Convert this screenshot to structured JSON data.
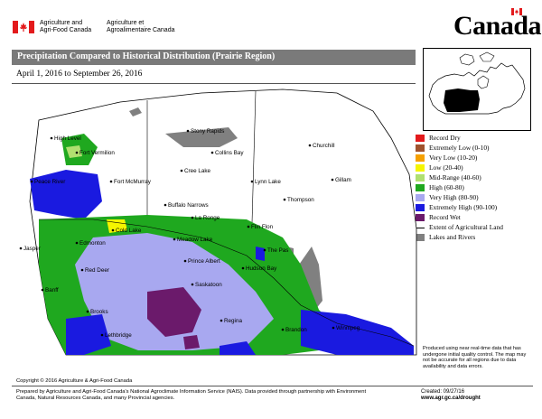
{
  "header": {
    "agency_en_line1": "Agriculture and",
    "agency_en_line2": "Agri-Food Canada",
    "agency_fr_line1": "Agriculture et",
    "agency_fr_line2": "Agroalimentaire Canada",
    "wordmark": "Canada"
  },
  "title": "Precipitation Compared to Historical Distribution (Prairie Region)",
  "date_range": "April 1, 2016 to September 26, 2016",
  "legend": [
    {
      "label": "Record Dry",
      "color": "#e31a1c",
      "kind": "box"
    },
    {
      "label": "Extremely Low (0-10)",
      "color": "#a0522d",
      "kind": "box"
    },
    {
      "label": "Very Low (10-20)",
      "color": "#f5a000",
      "kind": "box"
    },
    {
      "label": "Low (20-40)",
      "color": "#f5f500",
      "kind": "box"
    },
    {
      "label": "Mid-Range (40-60)",
      "color": "#b0e070",
      "kind": "box"
    },
    {
      "label": "High (60-80)",
      "color": "#1fa81f",
      "kind": "box"
    },
    {
      "label": "Very High (80-90)",
      "color": "#a8a8f0",
      "kind": "box"
    },
    {
      "label": "Extremely High (90-100)",
      "color": "#1a1ae0",
      "kind": "box"
    },
    {
      "label": "Record Wet",
      "color": "#6b1a6b",
      "kind": "box"
    },
    {
      "label": "Extent of Agricultural Land",
      "color": "#000000",
      "kind": "line"
    },
    {
      "label": "Lakes and Rivers",
      "color": "#808080",
      "kind": "box"
    }
  ],
  "places": [
    {
      "name": "Stony Rapids"
    },
    {
      "name": "Churchill"
    },
    {
      "name": "High Level"
    },
    {
      "name": "Fort Vermilion"
    },
    {
      "name": "Collins Bay"
    },
    {
      "name": "Cree Lake"
    },
    {
      "name": "Fort McMurray"
    },
    {
      "name": "Peace River"
    },
    {
      "name": "Lynn Lake"
    },
    {
      "name": "Gillam"
    },
    {
      "name": "Thompson"
    },
    {
      "name": "Buffalo Narrows"
    },
    {
      "name": "La Ronge"
    },
    {
      "name": "Flin Flon"
    },
    {
      "name": "Cold Lake"
    },
    {
      "name": "Meadow Lake"
    },
    {
      "name": "Jasper"
    },
    {
      "name": "Edmonton"
    },
    {
      "name": "The Pas"
    },
    {
      "name": "Prince Albert"
    },
    {
      "name": "Hudson Bay"
    },
    {
      "name": "Red Deer"
    },
    {
      "name": "Saskatoon"
    },
    {
      "name": "Banff"
    },
    {
      "name": "Brooks"
    },
    {
      "name": "Regina"
    },
    {
      "name": "Brandon"
    },
    {
      "name": "Lethbridge"
    },
    {
      "name": "Winnipeg"
    }
  ],
  "disclaimer": "Produced using near real-time data that has undergone initial quality control. The map may not be accurate for all regions due to data availability and data errors.",
  "copyright": "Copyright © 2016 Agriculture & Agri-Food Canada",
  "credits": "Prepared by Agriculture and Agri-Food Canada's National Agroclimate Information Service (NAIS). Data provided through partnership with Environment Canada, Natural Resources Canada, and many Provincial agencies.",
  "created": "Created: 09/27/16",
  "url": "www.agr.gc.ca/drought"
}
